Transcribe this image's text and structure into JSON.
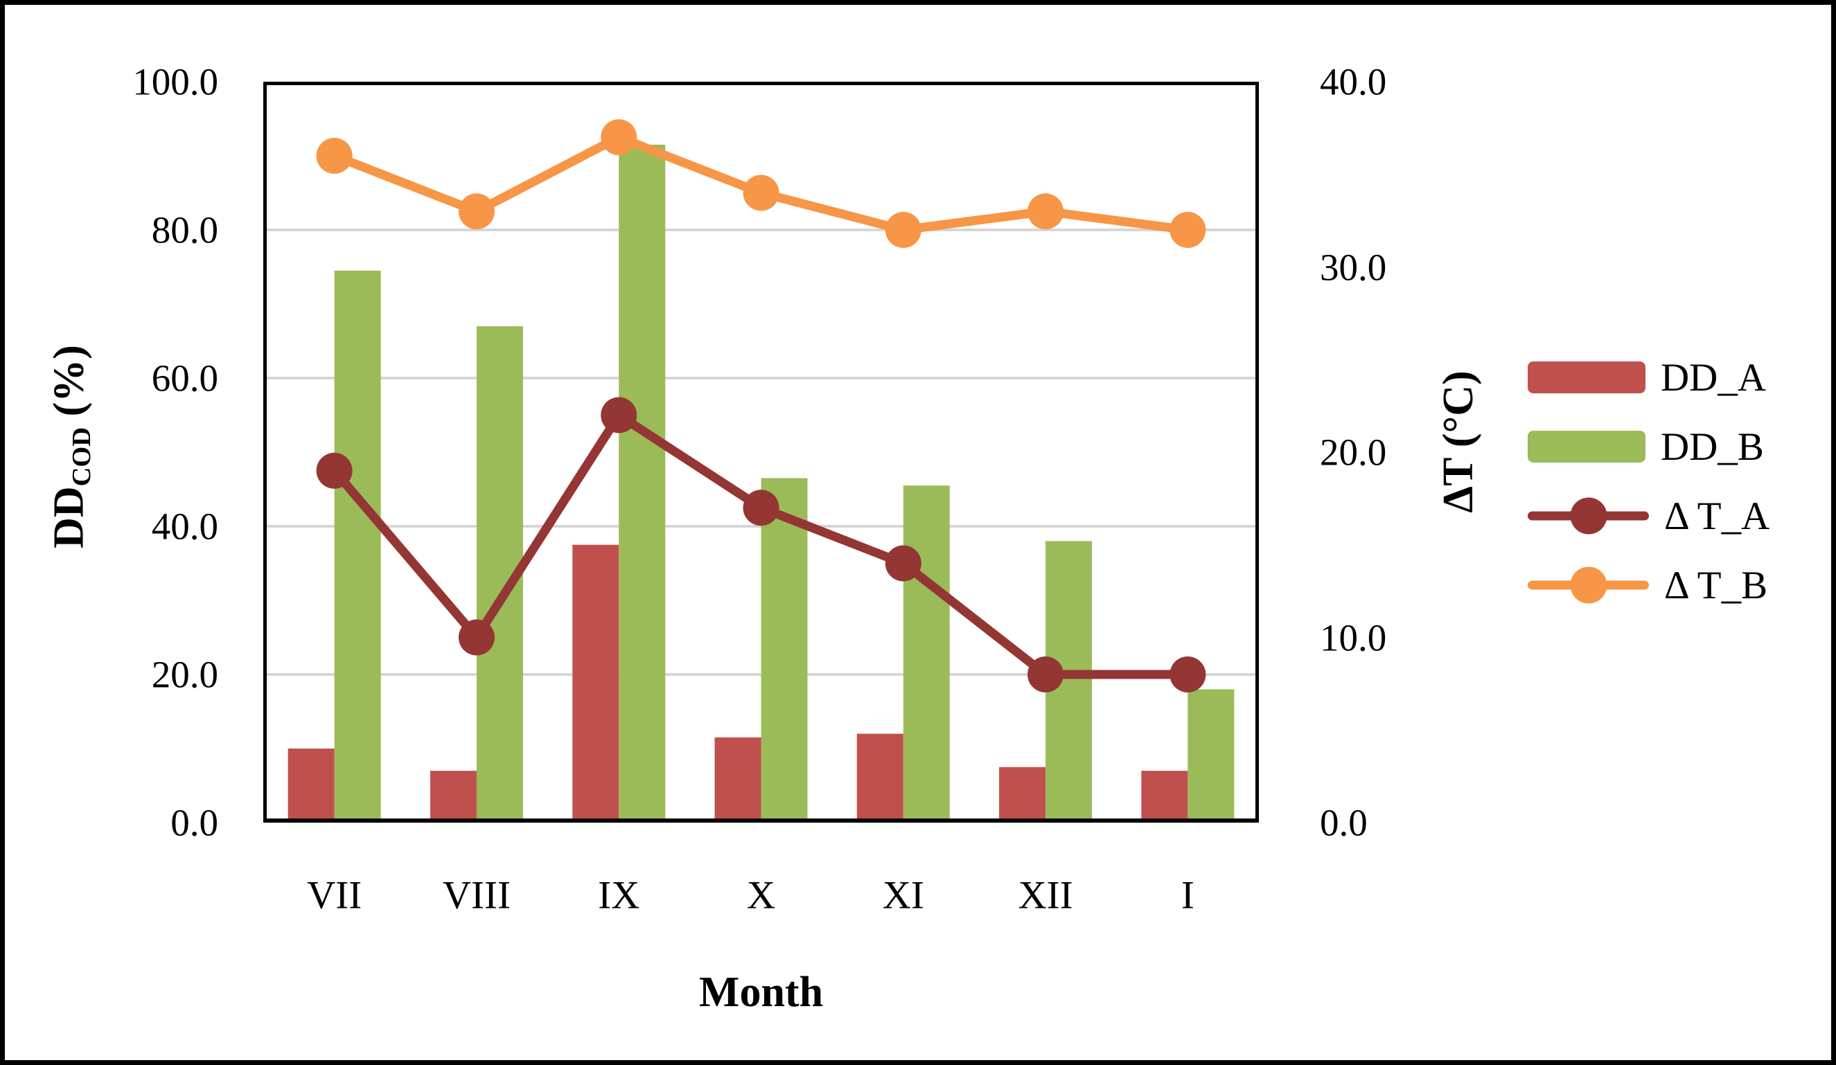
{
  "chart_data": {
    "type": "combo: clustered bars (left axis) + marker lines (right axis)",
    "categories": [
      "VII",
      "VIII",
      "IX",
      "X",
      "XI",
      "XII",
      "I"
    ],
    "bar_series": [
      {
        "name": "DD_A",
        "color": "#C0504D",
        "axis": "left",
        "values": [
          10.0,
          7.0,
          37.5,
          11.5,
          12.0,
          7.5,
          7.0
        ]
      },
      {
        "name": "DD_B",
        "color": "#9BBB59",
        "axis": "left",
        "values": [
          74.5,
          67.0,
          91.5,
          46.5,
          45.5,
          38.0,
          18.0
        ]
      }
    ],
    "line_series": [
      {
        "name": "Δ T_A",
        "color": "#943634",
        "axis": "right",
        "values": [
          19.0,
          10.0,
          22.0,
          17.0,
          14.0,
          8.0,
          8.0
        ]
      },
      {
        "name": "Δ T_B",
        "color": "#F79646",
        "axis": "right",
        "values": [
          36.0,
          33.0,
          37.0,
          34.0,
          32.0,
          33.0,
          32.0
        ]
      }
    ],
    "left_axis": {
      "title_main": "DD",
      "title_sub": "COD",
      "title_unit": " (%)",
      "min": 0,
      "max": 100,
      "ticks": [
        {
          "label": "100.0",
          "value": 100
        },
        {
          "label": "80.0",
          "value": 80
        },
        {
          "label": "60.0",
          "value": 60
        },
        {
          "label": "40.0",
          "value": 40
        },
        {
          "label": "20.0",
          "value": 20
        },
        {
          "label": "0.0",
          "value": 0
        }
      ]
    },
    "right_axis": {
      "title": "ΔT (°C)",
      "min": 0,
      "max": 40,
      "ticks": [
        {
          "label": "40.0",
          "value": 40
        },
        {
          "label": "30.0",
          "value": 30
        },
        {
          "label": "20.0",
          "value": 20
        },
        {
          "label": "10.0",
          "value": 10
        },
        {
          "label": "0.0",
          "value": 0
        }
      ]
    },
    "x_axis": {
      "title": "Month"
    },
    "legend": {
      "position": "right",
      "items": [
        {
          "label": "DD_A",
          "type": "bar",
          "color": "#C0504D"
        },
        {
          "label": "DD_B",
          "type": "bar",
          "color": "#9BBB59"
        },
        {
          "label": "Δ T_A",
          "type": "line",
          "color": "#943634"
        },
        {
          "label": "Δ T_B",
          "type": "line",
          "color": "#F79646"
        }
      ]
    },
    "grid": {
      "show": true,
      "color": "#D6D6D6"
    },
    "frame_color": "#000000",
    "background": "#FFFFFF"
  }
}
